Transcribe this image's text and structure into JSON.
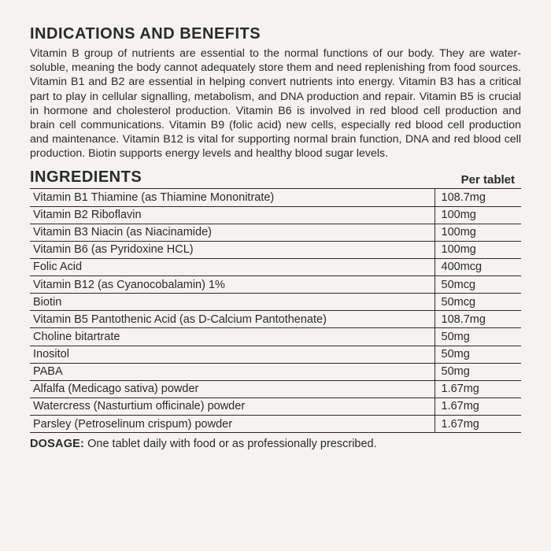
{
  "headings": {
    "indications": "INDICATIONS AND BENEFITS",
    "ingredients": "INGREDIENTS",
    "per_tablet": "Per tablet",
    "dosage_label": "DOSAGE:",
    "dosage_text": " One tablet daily with food or as professionally prescribed."
  },
  "benefits_text": "Vitamin B group of nutrients are essential to the normal functions of our body. They are water-soluble, meaning the body cannot adequately store them and need replenishing from food sources. Vitamin B1 and B2 are essential in helping convert nutrients into energy. Vitamin B3 has a critical part to play in cellular signalling, metabolism, and DNA production and repair. Vitamin B5 is crucial in hormone and cholesterol production. Vitamin B6 is involved in red blood cell production and brain cell communications. Vitamin B9 (folic acid) new cells, especially red blood cell production and maintenance. Vitamin B12 is vital for supporting normal brain function, DNA and red blood cell production. Biotin supports energy levels and healthy blood sugar levels.",
  "ingredients": [
    {
      "name": "Vitamin B1 Thiamine (as Thiamine Mononitrate)",
      "amount": "108.7mg"
    },
    {
      "name": "Vitamin B2 Riboflavin",
      "amount": "100mg"
    },
    {
      "name": "Vitamin B3 Niacin (as Niacinamide)",
      "amount": "100mg"
    },
    {
      "name": "Vitamin B6 (as Pyridoxine HCL)",
      "amount": "100mg"
    },
    {
      "name": "Folic Acid",
      "amount": "400mcg"
    },
    {
      "name": "Vitamin B12 (as Cyanocobalamin) 1%",
      "amount": "50mcg"
    },
    {
      "name": "Biotin",
      "amount": "50mcg"
    },
    {
      "name": "Vitamin B5 Pantothenic Acid (as D-Calcium Pantothenate)",
      "amount": "108.7mg"
    },
    {
      "name": "Choline bitartrate",
      "amount": "50mg"
    },
    {
      "name": "Inositol",
      "amount": "50mg"
    },
    {
      "name": "PABA",
      "amount": "50mg"
    },
    {
      "name": "Alfalfa (Medicago sativa) powder",
      "amount": "1.67mg"
    },
    {
      "name": "Watercress (Nasturtium officinale) powder",
      "amount": "1.67mg"
    },
    {
      "name": "Parsley (Petroselinum crispum) powder",
      "amount": "1.67mg"
    }
  ]
}
